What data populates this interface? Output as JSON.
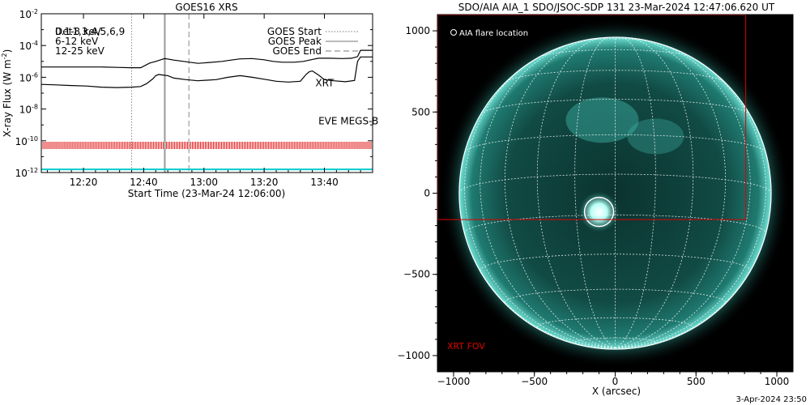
{
  "chart_data": [
    {
      "type": "line",
      "title": "GOES16 XRS",
      "xlabel": "Start Time (23-Mar-24 12:06:00)",
      "ylabel": "X-ray Flux (W m",
      "ylabel_exp": "-2",
      "ylabel_close": ")",
      "y_scale": "log",
      "ylim": [
        1e-12,
        0.01
      ],
      "xlim_min": [
        0,
        110
      ],
      "x_tick_labels": [
        "12:20",
        "12:40",
        "13:00",
        "13:20",
        "13:40"
      ],
      "x_tick_minutes": [
        14,
        34,
        54,
        74,
        94
      ],
      "y_tick_exponents": [
        -12,
        -10,
        -8,
        -6,
        -4,
        -2
      ],
      "y_tick_base": "10",
      "legend_left": {
        "position": "top-left",
        "entries": [
          {
            "text": "0.1-8 keV",
            "color": "#000000"
          },
          {
            "text": "Det1,3,4,5,6,9",
            "color": "#000000"
          },
          {
            "text": "6-12 keV",
            "color": "#dd00dd"
          },
          {
            "text": "12-25 keV",
            "color": "#00cc00"
          }
        ]
      },
      "legend_right": {
        "position": "top-right",
        "entries": [
          {
            "text": "GOES Start",
            "style": "dotted"
          },
          {
            "text": "GOES Peak",
            "style": "solid"
          },
          {
            "text": "GOES End",
            "style": "dashed"
          }
        ]
      },
      "event_lines_min": {
        "start": 30,
        "peak": 41,
        "end": 49
      },
      "annotations": [
        {
          "text": "XRT",
          "color": "#dd0000",
          "x_min": 91,
          "y_log": -6.3
        },
        {
          "text": "EVE MEGS-B",
          "color": "#00dddd",
          "x_min": 92,
          "y_log": -8.7
        }
      ],
      "series": [
        {
          "color": "#000000",
          "points": [
            [
              0,
              -5.35
            ],
            [
              5,
              -5.35
            ],
            [
              10,
              -5.35
            ],
            [
              15,
              -5.35
            ],
            [
              20,
              -5.35
            ],
            [
              25,
              -5.38
            ],
            [
              30,
              -5.4
            ],
            [
              33,
              -5.4
            ],
            [
              36,
              -5.1
            ],
            [
              38,
              -5.0
            ],
            [
              40,
              -4.88
            ],
            [
              41,
              -4.82
            ],
            [
              44,
              -4.92
            ],
            [
              48,
              -5.02
            ],
            [
              52,
              -5.12
            ],
            [
              55,
              -5.08
            ],
            [
              60,
              -5.0
            ],
            [
              63,
              -4.92
            ],
            [
              66,
              -4.84
            ],
            [
              70,
              -4.82
            ],
            [
              74,
              -4.9
            ],
            [
              77,
              -5.0
            ],
            [
              80,
              -5.05
            ],
            [
              84,
              -5.05
            ],
            [
              87,
              -5.0
            ],
            [
              90,
              -4.88
            ],
            [
              92,
              -4.8
            ],
            [
              96,
              -4.8
            ],
            [
              100,
              -4.82
            ],
            [
              103,
              -4.8
            ],
            [
              105,
              -4.7
            ],
            [
              106,
              -4.3
            ],
            [
              110,
              -4.3
            ]
          ]
        },
        {
          "color": "#000000",
          "points": [
            [
              0,
              -6.45
            ],
            [
              5,
              -6.48
            ],
            [
              10,
              -6.52
            ],
            [
              15,
              -6.55
            ],
            [
              20,
              -6.62
            ],
            [
              25,
              -6.65
            ],
            [
              30,
              -6.62
            ],
            [
              33,
              -6.58
            ],
            [
              35,
              -6.4
            ],
            [
              37,
              -6.1
            ],
            [
              38,
              -5.9
            ],
            [
              39,
              -5.82
            ],
            [
              40,
              -5.85
            ],
            [
              42,
              -5.9
            ],
            [
              44,
              -6.05
            ],
            [
              48,
              -6.15
            ],
            [
              52,
              -6.22
            ],
            [
              58,
              -6.15
            ],
            [
              62,
              -6.0
            ],
            [
              66,
              -5.9
            ],
            [
              70,
              -6.0
            ],
            [
              74,
              -6.12
            ],
            [
              78,
              -6.25
            ],
            [
              82,
              -6.3
            ],
            [
              86,
              -6.25
            ],
            [
              88,
              -5.8
            ],
            [
              89,
              -5.65
            ],
            [
              90,
              -5.6
            ],
            [
              92,
              -5.85
            ],
            [
              94,
              -6.15
            ],
            [
              97,
              -6.22
            ],
            [
              101,
              -6.28
            ],
            [
              104,
              -6.2
            ],
            [
              105,
              -5.0
            ],
            [
              106,
              -4.72
            ],
            [
              110,
              -4.72
            ]
          ]
        },
        {
          "color": "#00cccc",
          "points": [
            [
              0,
              -11.8
            ],
            [
              110,
              -11.8
            ]
          ]
        }
      ]
    },
    {
      "type": "image",
      "title": "SDO/AIA AIA_1 SDO/JSOC-SDP 131 23-Mar-2024 12:47:06.620 UT",
      "xlabel": "X (arcsec)",
      "xlim": [
        -1100,
        1100
      ],
      "ylim": [
        -1100,
        1100
      ],
      "x_ticks": [
        -1000,
        -500,
        0,
        500,
        1000
      ],
      "y_ticks": [
        -1000,
        -500,
        0,
        500,
        1000
      ],
      "x_tick_labels": [
        "−1000",
        "−500",
        "0",
        "500",
        "1000"
      ],
      "y_tick_labels": [
        "−1000",
        "−500",
        "0",
        "500",
        "1000"
      ],
      "solar_radius_arcsec": 965,
      "flare_location": {
        "x": -100,
        "y": -115,
        "radius": 90
      },
      "flare_legend": "AIA flare location",
      "xrt_fov": {
        "label": "XRT FOV",
        "x_range": [
          -1100,
          810
        ],
        "y_range": [
          -165,
          1100
        ],
        "color": "#dd0000"
      }
    }
  ],
  "footer": {
    "timestamp": "3-Apr-2024 23:50"
  },
  "colors": {
    "disk": "#0d3f3a",
    "grid": "#ffffff",
    "limb_glow": "#5ad9cc",
    "xrt": "#dd0000",
    "eve": "#00dddd"
  }
}
